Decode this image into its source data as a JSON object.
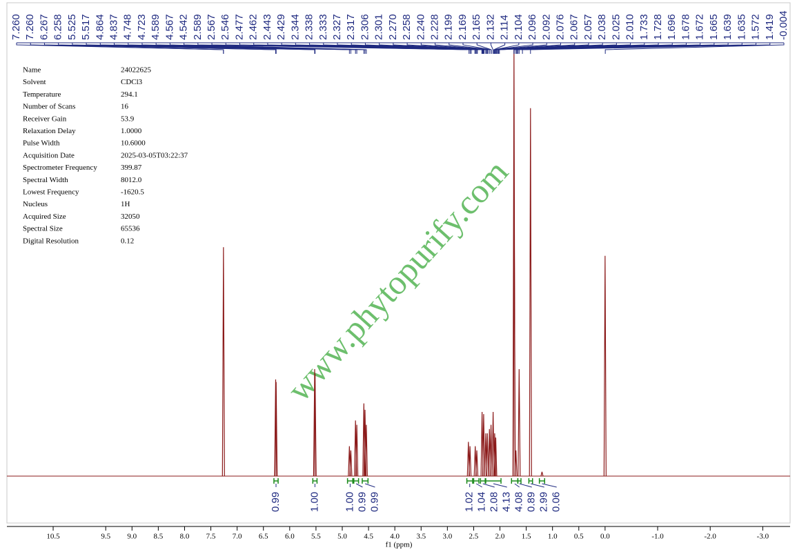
{
  "chart_data": {
    "type": "nmr",
    "xlabel": "f1 (ppm)",
    "xlim": [
      11.38,
      -3.52
    ],
    "xticks": [
      10.5,
      9.5,
      {
        "value": 9,
        "label": "9.0"
      },
      8.5,
      {
        "value": 8,
        "label": "8.0"
      },
      7.5,
      {
        "value": 7,
        "label": "7.0"
      },
      6.5,
      {
        "value": 6,
        "label": "6.0"
      },
      5.5,
      {
        "value": 5,
        "label": "5.0"
      },
      4.5,
      {
        "value": 4,
        "label": "4.0"
      },
      3.5,
      {
        "value": 3,
        "label": "3.0"
      },
      2.5,
      {
        "value": 2,
        "label": "2.0"
      },
      1.5,
      {
        "value": 1,
        "label": "1.0"
      },
      0.5,
      {
        "value": 0,
        "label": "0.0"
      },
      {
        "value": -1,
        "label": "-1.0"
      },
      {
        "value": -2,
        "label": "-2.0"
      },
      {
        "value": -3,
        "label": "-3.0"
      }
    ],
    "color": "#8b1a1a",
    "peaks": {
      "x": [
        7.26,
        6.267,
        6.258,
        5.525,
        5.517,
        4.864,
        4.837,
        4.748,
        4.723,
        4.589,
        4.567,
        4.542,
        2.6,
        2.57,
        2.47,
        2.44,
        2.34,
        2.31,
        2.27,
        2.24,
        2.2,
        2.17,
        2.13,
        2.1,
        2.08,
        1.733,
        1.728,
        1.696,
        1.635,
        1.419,
        1.2,
        0.0
      ],
      "values": [
        53.5,
        22.6,
        22,
        25,
        24,
        7,
        6,
        13,
        12,
        17,
        15.5,
        12,
        8,
        7,
        7,
        6,
        15,
        14.5,
        10,
        10,
        11,
        12,
        15,
        10,
        9,
        100,
        60,
        6,
        25,
        86,
        1,
        51.5
      ]
    },
    "peak_labels": [
      {
        "value": 7.26,
        "label": "7.260"
      },
      {
        "value": 7.26,
        "label": "7.260"
      },
      {
        "value": 6.267,
        "label": "6.267"
      },
      {
        "value": 6.258,
        "label": "6.258"
      },
      {
        "value": 5.525,
        "label": "5.525"
      },
      {
        "value": 5.517,
        "label": "5.517"
      },
      {
        "value": 4.864,
        "label": "4.864"
      },
      {
        "value": 4.837,
        "label": "4.837"
      },
      {
        "value": 4.748,
        "label": "4.748"
      },
      {
        "value": 4.723,
        "label": "4.723"
      },
      {
        "value": 4.589,
        "label": "4.589"
      },
      {
        "value": 4.567,
        "label": "4.567"
      },
      {
        "value": 4.542,
        "label": "4.542"
      },
      {
        "value": 2.589,
        "label": "2.589"
      },
      {
        "value": 2.567,
        "label": "2.567"
      },
      {
        "value": 2.546,
        "label": "2.546"
      },
      {
        "value": 2.477,
        "label": "2.477"
      },
      {
        "value": 2.462,
        "label": "2.462"
      },
      {
        "value": 2.443,
        "label": "2.443"
      },
      {
        "value": 2.429,
        "label": "2.429"
      },
      {
        "value": 2.344,
        "label": "2.344"
      },
      {
        "value": 2.338,
        "label": "2.338"
      },
      {
        "value": 2.333,
        "label": "2.333"
      },
      {
        "value": 2.327,
        "label": "2.327"
      },
      {
        "value": 2.317,
        "label": "2.317"
      },
      {
        "value": 2.306,
        "label": "2.306"
      },
      {
        "value": 2.301,
        "label": "2.301"
      },
      {
        "value": 2.27,
        "label": "2.270"
      },
      {
        "value": 2.258,
        "label": "2.258"
      },
      {
        "value": 2.24,
        "label": "2.240"
      },
      {
        "value": 2.228,
        "label": "2.228"
      },
      {
        "value": 2.199,
        "label": "2.199"
      },
      {
        "value": 2.169,
        "label": "2.169"
      },
      {
        "value": 2.165,
        "label": "2.165"
      },
      {
        "value": 2.132,
        "label": "2.132"
      },
      {
        "value": 2.114,
        "label": "2.114"
      },
      {
        "value": 2.104,
        "label": "2.104"
      },
      {
        "value": 2.096,
        "label": "2.096"
      },
      {
        "value": 2.092,
        "label": "2.092"
      },
      {
        "value": 2.076,
        "label": "2.076"
      },
      {
        "value": 2.067,
        "label": "2.067"
      },
      {
        "value": 2.057,
        "label": "2.057"
      },
      {
        "value": 2.038,
        "label": "2.038"
      },
      {
        "value": 2.025,
        "label": "2.025"
      },
      {
        "value": 2.01,
        "label": "2.010"
      },
      {
        "value": 1.733,
        "label": "1.733"
      },
      {
        "value": 1.728,
        "label": "1.728"
      },
      {
        "value": 1.696,
        "label": "1.696"
      },
      {
        "value": 1.678,
        "label": "1.678"
      },
      {
        "value": 1.672,
        "label": "1.672"
      },
      {
        "value": 1.665,
        "label": "1.665"
      },
      {
        "value": 1.639,
        "label": "1.639"
      },
      {
        "value": 1.635,
        "label": "1.635"
      },
      {
        "value": 1.572,
        "label": "1.572"
      },
      {
        "value": 1.419,
        "label": "1.419"
      },
      {
        "value": -0.004,
        "label": "-0.004"
      }
    ],
    "integrals": {
      "ranges": [
        [
          6.3,
          6.22
        ],
        [
          5.56,
          5.48
        ],
        [
          4.9,
          4.8
        ],
        [
          4.78,
          4.69
        ],
        [
          4.62,
          4.51
        ],
        [
          2.63,
          2.52
        ],
        [
          2.5,
          2.4
        ],
        [
          2.37,
          2.28
        ],
        [
          2.27,
          1.98
        ],
        [
          1.78,
          1.66
        ],
        [
          1.66,
          1.6
        ],
        [
          1.45,
          1.38
        ],
        [
          1.25,
          1.15
        ]
      ],
      "values": [
        0.99,
        1.0,
        1.0,
        0.99,
        0.99,
        1.02,
        1.04,
        2.08,
        4.13,
        4.08,
        0.89,
        2.99,
        0.06
      ],
      "value_labels": [
        "0.99",
        "1.00",
        "1.00",
        "0.99",
        "0.99",
        "1.02",
        "1.04",
        "2.08",
        "4.13",
        "4.08",
        "0.89",
        "2.99",
        "0.06"
      ]
    },
    "parameters": [
      [
        "Name",
        "24022625"
      ],
      [
        "Solvent",
        "CDCl3"
      ],
      [
        "Temperature",
        "294.1"
      ],
      [
        "Number of Scans",
        "16"
      ],
      [
        "Receiver Gain",
        "53.9"
      ],
      [
        "Relaxation Delay",
        "1.0000"
      ],
      [
        "Pulse Width",
        "10.6000"
      ],
      [
        "Acquisition Date",
        "2025-03-05T03:22:37"
      ],
      [
        "Spectrometer Frequency",
        "399.87"
      ],
      [
        "Spectral Width",
        "8012.0"
      ],
      [
        "Lowest Frequency",
        "-1620.5"
      ],
      [
        "Nucleus",
        "1H"
      ],
      [
        "Acquired Size",
        "32050"
      ],
      [
        "Spectral Size",
        "65536"
      ],
      [
        "Digital Resolution",
        "0.12"
      ]
    ],
    "watermark": "www.phytopurify.com"
  }
}
